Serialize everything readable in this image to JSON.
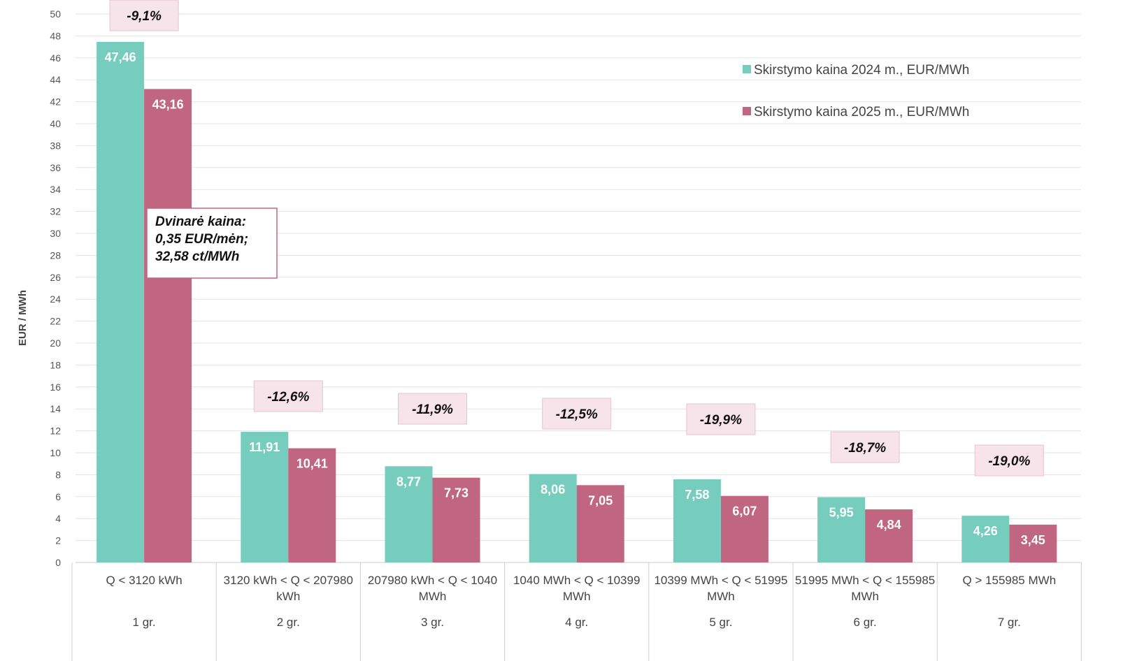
{
  "chart_data": {
    "type": "bar",
    "ylabel": "EUR / MWh",
    "ylim": [
      0,
      50
    ],
    "ytick_step": 2,
    "grid": true,
    "legend_placement": "top-right",
    "categories": [
      "Q < 3120 kWh",
      "3120 kWh < Q < 207980 kWh",
      "207980 kWh < Q < 1040 MWh",
      "1040 MWh < Q < 10399 MWh",
      "10399 MWh  < Q < 51995 MWh",
      "51995 MWh < Q < 155985 MWh",
      "Q > 155985 MWh"
    ],
    "category_lines": [
      [
        "Q < 3120 kWh"
      ],
      [
        "3120 kWh < Q < 207980",
        "kWh"
      ],
      [
        "207980 kWh < Q < 1040",
        "MWh"
      ],
      [
        "1040 MWh < Q < 10399",
        "MWh"
      ],
      [
        "10399 MWh  < Q < 51995",
        "MWh"
      ],
      [
        "51995 MWh < Q < 155985",
        "MWh"
      ],
      [
        "Q > 155985 MWh"
      ]
    ],
    "groups": [
      "1 gr.",
      "2 gr.",
      "3 gr.",
      "4 gr.",
      "5 gr.",
      "6 gr.",
      "7 gr."
    ],
    "series": [
      {
        "name": "Skirstymo kaina 2024 m., EUR/MWh",
        "color": "#76cdbd",
        "values": [
          47.46,
          11.91,
          8.77,
          8.06,
          7.58,
          5.95,
          4.26
        ],
        "labels": [
          "47,46",
          "11,91",
          "8,77",
          "8,06",
          "7,58",
          "5,95",
          "4,26"
        ]
      },
      {
        "name": "Skirstymo kaina 2025 m., EUR/MWh",
        "color": "#c06681",
        "values": [
          43.16,
          10.41,
          7.73,
          7.05,
          6.07,
          4.84,
          3.45
        ],
        "labels": [
          "43,16",
          "10,41",
          "7,73",
          "7,05",
          "6,07",
          "4,84",
          "3,45"
        ]
      }
    ],
    "change_labels": [
      "-9,1%",
      "-12,6%",
      "-11,9%",
      "-12,5%",
      "-19,9%",
      "-18,7%",
      "-19,0%"
    ],
    "annotation": {
      "lines": [
        "Dvinarė kaina:",
        "0,35 EUR/mėn;",
        "32,58 ct/MWh"
      ],
      "border_color": "#c06681"
    },
    "change_box_color": "#f7e4ea",
    "change_box_border": "#e6c3cf"
  }
}
